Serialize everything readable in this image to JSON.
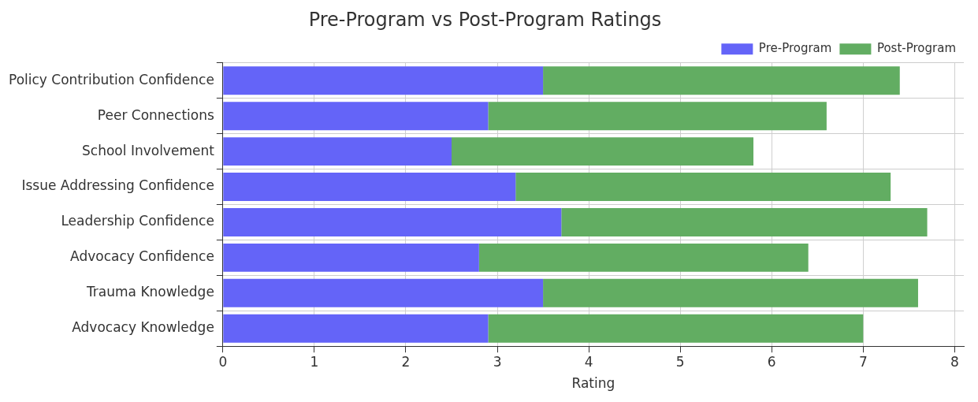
{
  "chart_data": {
    "type": "bar",
    "orientation": "horizontal",
    "stacked": true,
    "title": "Pre-Program vs Post-Program Ratings",
    "xlabel": "Rating",
    "categories": [
      "Policy Contribution Confidence",
      "Peer Connections",
      "School Involvement",
      "Issue Addressing Confidence",
      "Leadership Confidence",
      "Advocacy Confidence",
      "Trauma Knowledge",
      "Advocacy Knowledge"
    ],
    "series": [
      {
        "name": "Pre-Program",
        "color": "#6464f8",
        "values": [
          3.5,
          2.9,
          2.5,
          3.2,
          3.7,
          2.8,
          3.5,
          2.9
        ]
      },
      {
        "name": "Post-Program",
        "color": "#62ad62",
        "values": [
          3.9,
          3.7,
          3.3,
          4.1,
          4.0,
          3.6,
          4.1,
          4.1
        ]
      }
    ],
    "xlim": [
      0,
      8.1
    ],
    "xticks": [
      0,
      1,
      2,
      3,
      4,
      5,
      6,
      7,
      8
    ],
    "grid": true,
    "legend": "top right"
  }
}
